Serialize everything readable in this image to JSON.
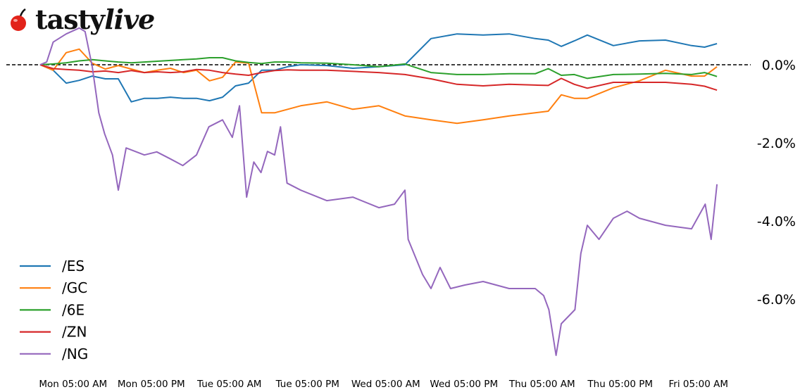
{
  "logo": {
    "brand_a": "tasty",
    "brand_b": "live"
  },
  "chart_data": {
    "type": "line",
    "title": "",
    "xlabel": "",
    "ylabel": "",
    "x_unit": "hours since Mon 00:00",
    "xlim": [
      0,
      104
    ],
    "ylim": [
      -7.6,
      1.1
    ],
    "grid": false,
    "reference_line": {
      "y": 0,
      "style": "dashed",
      "color": "#000000"
    },
    "x_ticks": [
      {
        "x": 5,
        "label": "Mon 05:00 AM"
      },
      {
        "x": 17,
        "label": "Mon 05:00 PM"
      },
      {
        "x": 29,
        "label": "Tue 05:00 AM"
      },
      {
        "x": 41,
        "label": "Tue 05:00 PM"
      },
      {
        "x": 53,
        "label": "Wed 05:00 AM"
      },
      {
        "x": 65,
        "label": "Wed 05:00 PM"
      },
      {
        "x": 77,
        "label": "Thu 05:00 AM"
      },
      {
        "x": 89,
        "label": "Thu 05:00 PM"
      },
      {
        "x": 101,
        "label": "Fri 05:00 AM"
      }
    ],
    "y_ticks": [
      {
        "y": 0,
        "label": "0.0%"
      },
      {
        "y": -2,
        "label": "-2.0%"
      },
      {
        "y": -4,
        "label": "-4.0%"
      },
      {
        "y": -6,
        "label": "-6.0%"
      }
    ],
    "legend_position": "bottom-left",
    "x": [
      0,
      2,
      4,
      6,
      8,
      10,
      12,
      14,
      16,
      18,
      20,
      22,
      24,
      26,
      28,
      30,
      32,
      34,
      36,
      38,
      40,
      44,
      48,
      52,
      56,
      60,
      64,
      68,
      72,
      76,
      78,
      80,
      82,
      84,
      88,
      92,
      96,
      100,
      102,
      103.9
    ],
    "series": [
      {
        "name": "/ES",
        "color": "#1f77b4",
        "values": [
          0,
          -0.14,
          -0.47,
          -0.4,
          -0.29,
          -0.36,
          -0.36,
          -0.95,
          -0.86,
          -0.86,
          -0.83,
          -0.86,
          -0.86,
          -0.92,
          -0.83,
          -0.54,
          -0.47,
          -0.14,
          -0.14,
          -0.05,
          0,
          -0.02,
          -0.09,
          -0.05,
          0,
          0.67,
          0.79,
          0.76,
          0.79,
          0.67,
          0.63,
          0.47,
          0.61,
          0.76,
          0.49,
          0.61,
          0.63,
          0.49,
          0.45,
          0.54
        ]
      },
      {
        "name": "/GC",
        "color": "#ff7f0e",
        "values": [
          0,
          -0.14,
          0.31,
          0.4,
          0.04,
          -0.11,
          -0.02,
          -0.11,
          -0.2,
          -0.14,
          -0.09,
          -0.2,
          -0.14,
          -0.41,
          -0.32,
          0.07,
          0.04,
          -1.23,
          -1.23,
          -1.14,
          -1.05,
          -0.95,
          -1.14,
          -1.05,
          -1.31,
          -1.41,
          -1.5,
          -1.41,
          -1.31,
          -1.23,
          -1.19,
          -0.77,
          -0.86,
          -0.86,
          -0.59,
          -0.41,
          -0.14,
          -0.29,
          -0.29,
          -0.05
        ]
      },
      {
        "name": "/6E",
        "color": "#2ca02c",
        "values": [
          0,
          0.02,
          0.05,
          0.1,
          0.13,
          0.1,
          0.07,
          0.05,
          0.07,
          0.09,
          0.11,
          0.13,
          0.15,
          0.18,
          0.18,
          0.1,
          0.06,
          0.03,
          0.07,
          0.07,
          0.05,
          0.04,
          0,
          -0.05,
          0.02,
          -0.2,
          -0.25,
          -0.25,
          -0.23,
          -0.23,
          -0.1,
          -0.27,
          -0.25,
          -0.35,
          -0.25,
          -0.24,
          -0.22,
          -0.25,
          -0.2,
          -0.3
        ]
      },
      {
        "name": "/ZN",
        "color": "#d62728",
        "values": [
          0,
          -0.1,
          -0.12,
          -0.14,
          -0.18,
          -0.16,
          -0.2,
          -0.15,
          -0.2,
          -0.18,
          -0.2,
          -0.18,
          -0.12,
          -0.14,
          -0.2,
          -0.24,
          -0.27,
          -0.2,
          -0.15,
          -0.13,
          -0.14,
          -0.14,
          -0.17,
          -0.2,
          -0.25,
          -0.36,
          -0.5,
          -0.54,
          -0.5,
          -0.52,
          -0.53,
          -0.35,
          -0.5,
          -0.6,
          -0.45,
          -0.45,
          -0.45,
          -0.5,
          -0.55,
          -0.65
        ]
      },
      {
        "name": "/NG",
        "color": "#9467bd",
        "x": [
          0,
          1,
          2,
          4,
          6,
          6.9,
          8,
          9,
          9.9,
          11.1,
          12,
          13.2,
          16,
          17.9,
          20,
          21.9,
          24,
          25.9,
          28,
          29.5,
          30.6,
          31.7,
          32.8,
          33.9,
          34.9,
          36,
          36.9,
          37.9,
          40,
          44,
          48,
          52,
          54.4,
          56,
          56.5,
          58.7,
          60,
          61.4,
          63,
          65.2,
          68,
          72,
          76,
          77.3,
          78.1,
          79.2,
          80,
          82.1,
          83,
          84,
          85.8,
          88,
          90.1,
          92,
          96,
          100,
          102.1,
          103,
          103.9
        ],
        "values": [
          0,
          0.07,
          0.58,
          0.79,
          0.94,
          0.85,
          -0.05,
          -1.23,
          -1.77,
          -2.31,
          -3.21,
          -2.13,
          -2.31,
          -2.23,
          -2.41,
          -2.58,
          -2.31,
          -1.59,
          -1.41,
          -1.86,
          -1.05,
          -3.39,
          -2.49,
          -2.76,
          -2.22,
          -2.31,
          -1.59,
          -3.03,
          -3.21,
          -3.48,
          -3.39,
          -3.66,
          -3.57,
          -3.21,
          -4.47,
          -5.37,
          -5.73,
          -5.19,
          -5.73,
          -5.64,
          -5.55,
          -5.73,
          -5.73,
          -5.91,
          -6.27,
          -7.44,
          -6.63,
          -6.27,
          -4.83,
          -4.11,
          -4.47,
          -3.93,
          -3.75,
          -3.93,
          -4.11,
          -4.2,
          -3.57,
          -4.47,
          -3.06
        ]
      }
    ]
  }
}
